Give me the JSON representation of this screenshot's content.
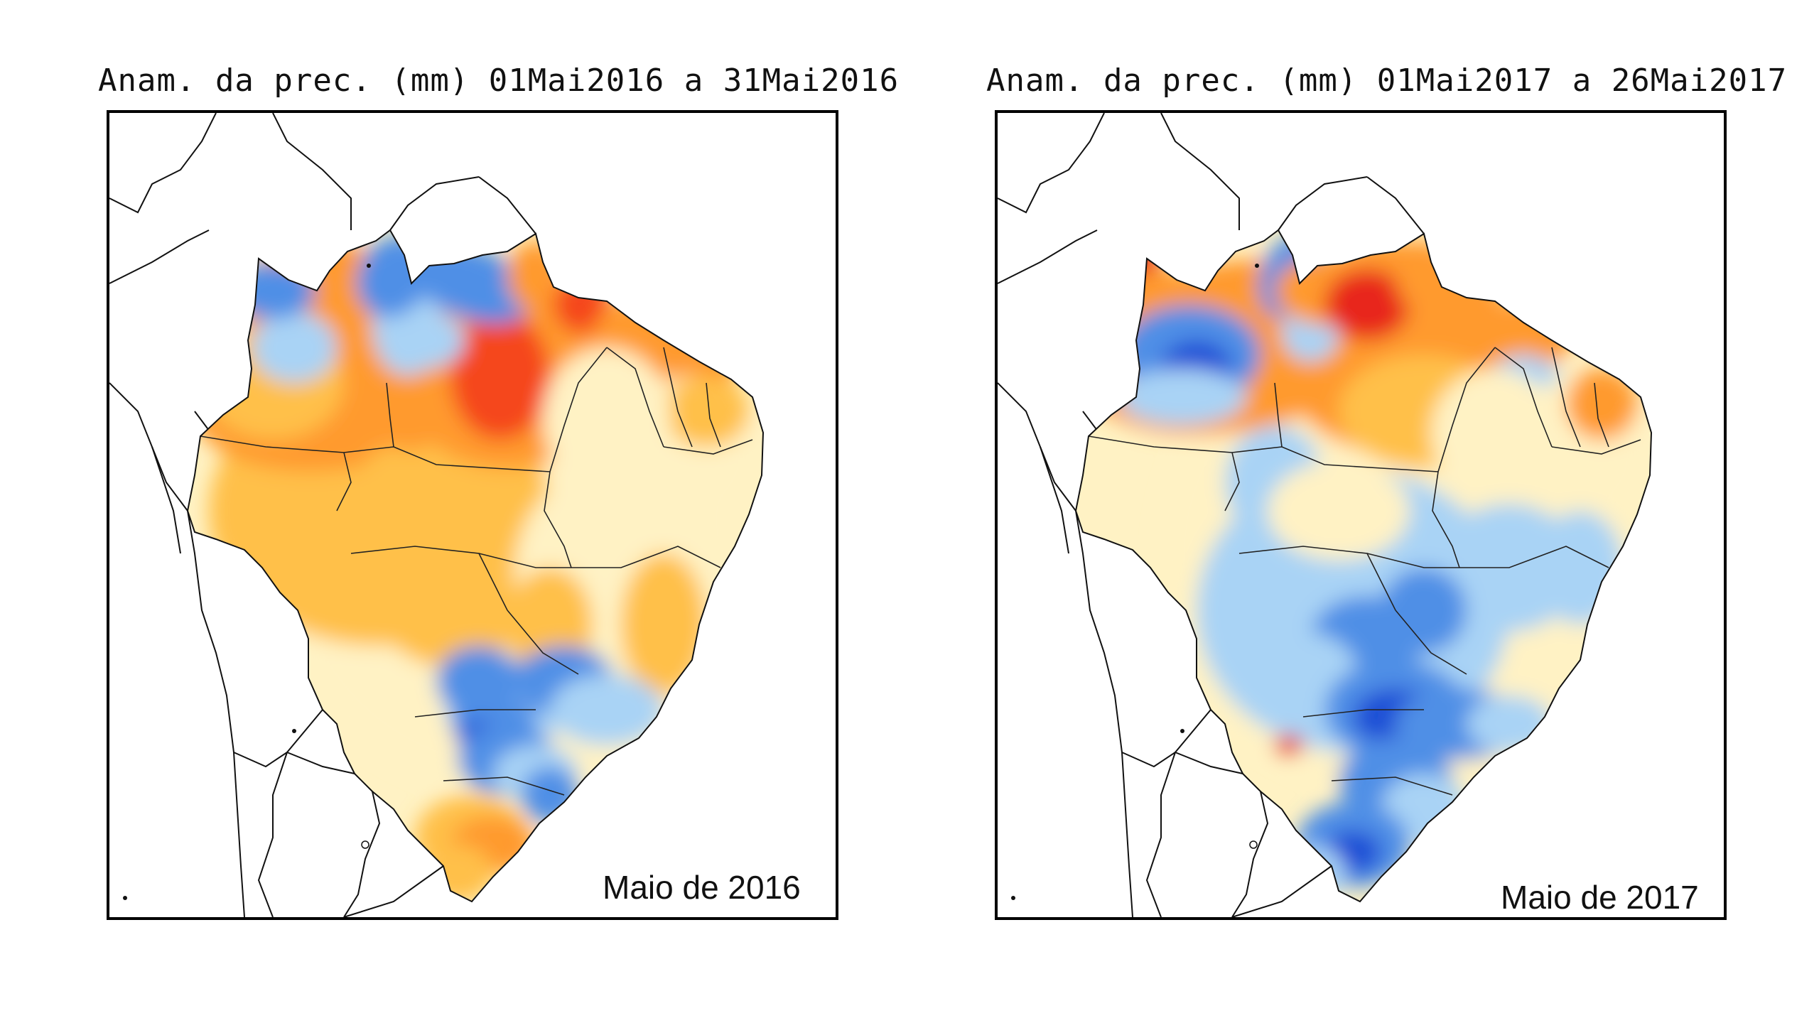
{
  "panels": [
    {
      "title": "Anam. da prec. (mm) 01Mai2016 a 31Mai2016",
      "caption": "Maio de 2016",
      "scheme": "dry",
      "colors": {
        "strong_positive": "#1f4fd6",
        "positive": "#4f8fe6",
        "weak_positive": "#a9d3f5",
        "pale": "#fff2c4",
        "weak_negative": "#ffc04a",
        "negative": "#ff9a2e",
        "strong_negative": "#f5461c"
      }
    },
    {
      "title": "Anam. da prec. (mm) 01Mai2017 a 26Mai2017",
      "caption": "Maio de 2017",
      "scheme": "wet",
      "colors": {
        "strong_positive": "#1f4fd6",
        "positive": "#4f8fe6",
        "weak_positive": "#a9d3f5",
        "pale": "#fff2c4",
        "weak_negative": "#ffc04a",
        "negative": "#ff9a2e",
        "strong_negative": "#e8261a"
      }
    }
  ]
}
